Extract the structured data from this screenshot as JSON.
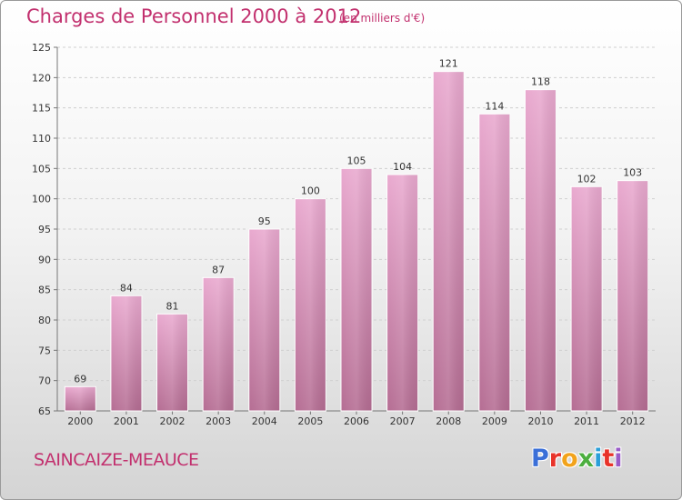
{
  "header": {
    "title": "Charges de Personnel 2000 à 2012",
    "subtitle": "(en milliers d'€)"
  },
  "footer": {
    "commune": "SAINCAIZE-MEAUCE",
    "logo_text": "Proxiti",
    "logo_colors": [
      "#3a6fd8",
      "#e8332a",
      "#f2a31b",
      "#4caf3f",
      "#2a9fd8",
      "#e8332a",
      "#9a5bc8"
    ]
  },
  "colors": {
    "bar_top": "#e9a9cf",
    "bar_bottom": "#b56d93",
    "accent": "#c2306e"
  },
  "chart_data": {
    "type": "bar",
    "title": "Charges de Personnel 2000 à 2012",
    "subtitle": "(en milliers d'€)",
    "categories": [
      "2000",
      "2001",
      "2002",
      "2003",
      "2004",
      "2005",
      "2006",
      "2007",
      "2008",
      "2009",
      "2010",
      "2011",
      "2012"
    ],
    "values": [
      69,
      84,
      81,
      87,
      95,
      100,
      105,
      104,
      121,
      114,
      118,
      102,
      103
    ],
    "ylim": [
      65,
      125
    ],
    "yticks": [
      65,
      70,
      75,
      80,
      85,
      90,
      95,
      100,
      105,
      110,
      115,
      120,
      125
    ],
    "grid": true,
    "xlabel": "",
    "ylabel": ""
  }
}
